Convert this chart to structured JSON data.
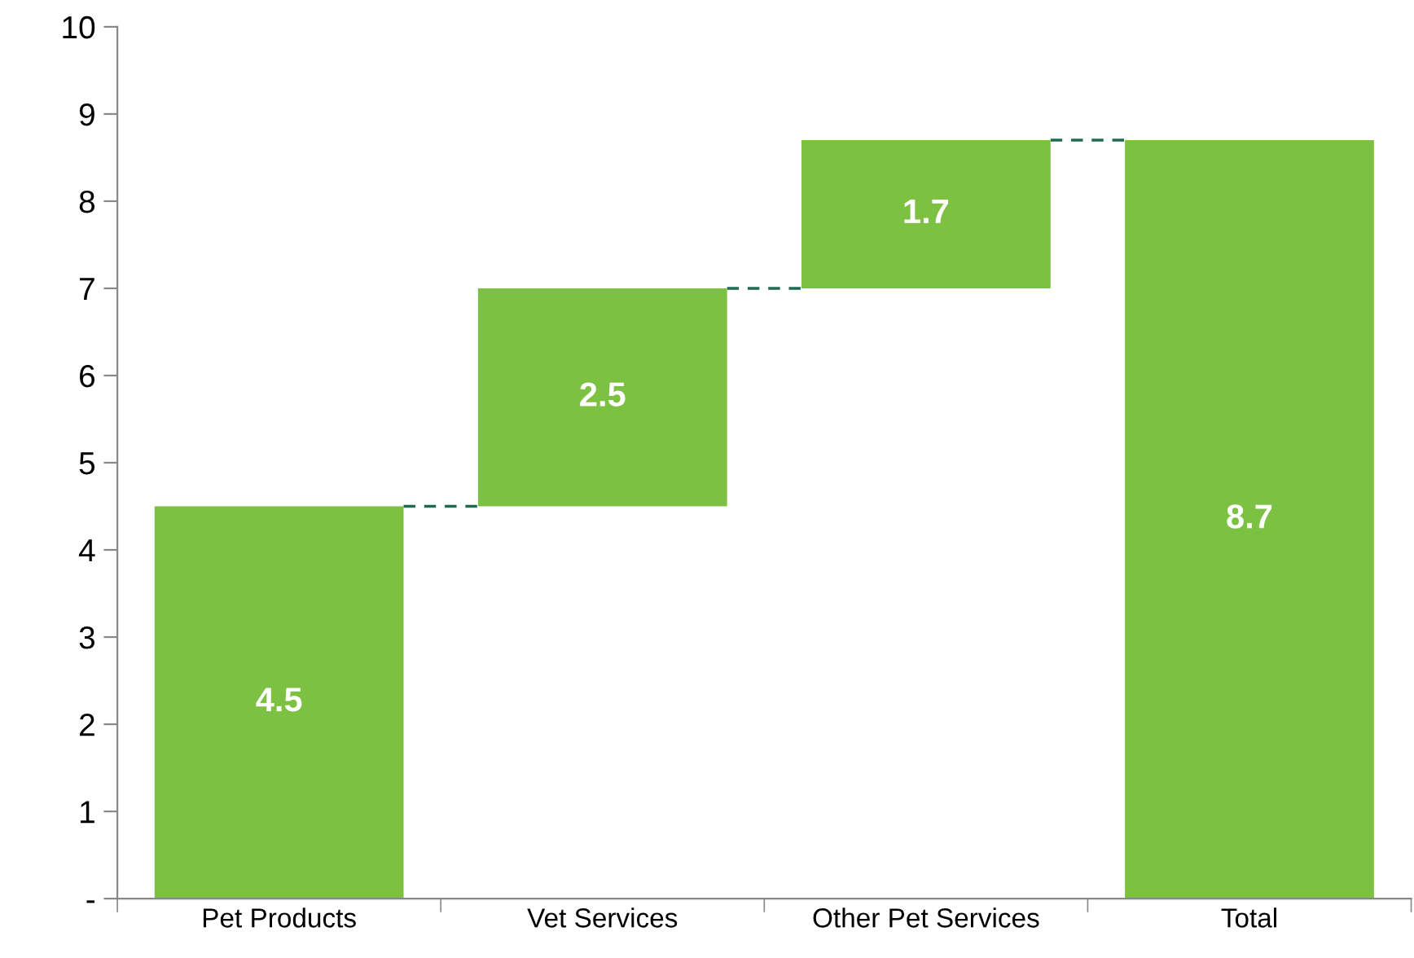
{
  "chart_data": {
    "type": "bar",
    "categories": [
      "Pet Products",
      "Vet Services",
      "Other Pet Services",
      "Total"
    ],
    "values": [
      4.5,
      2.5,
      1.7,
      8.7
    ],
    "base": [
      0,
      4.5,
      7.0,
      0
    ],
    "color": "#7dc142",
    "ylim": [
      0,
      10
    ],
    "yticks": [
      {
        "value": 0,
        "label": "-"
      },
      1,
      2,
      3,
      4,
      5,
      6,
      7,
      8,
      9,
      10
    ],
    "data_labels": true,
    "grid": false,
    "legend": false
  }
}
